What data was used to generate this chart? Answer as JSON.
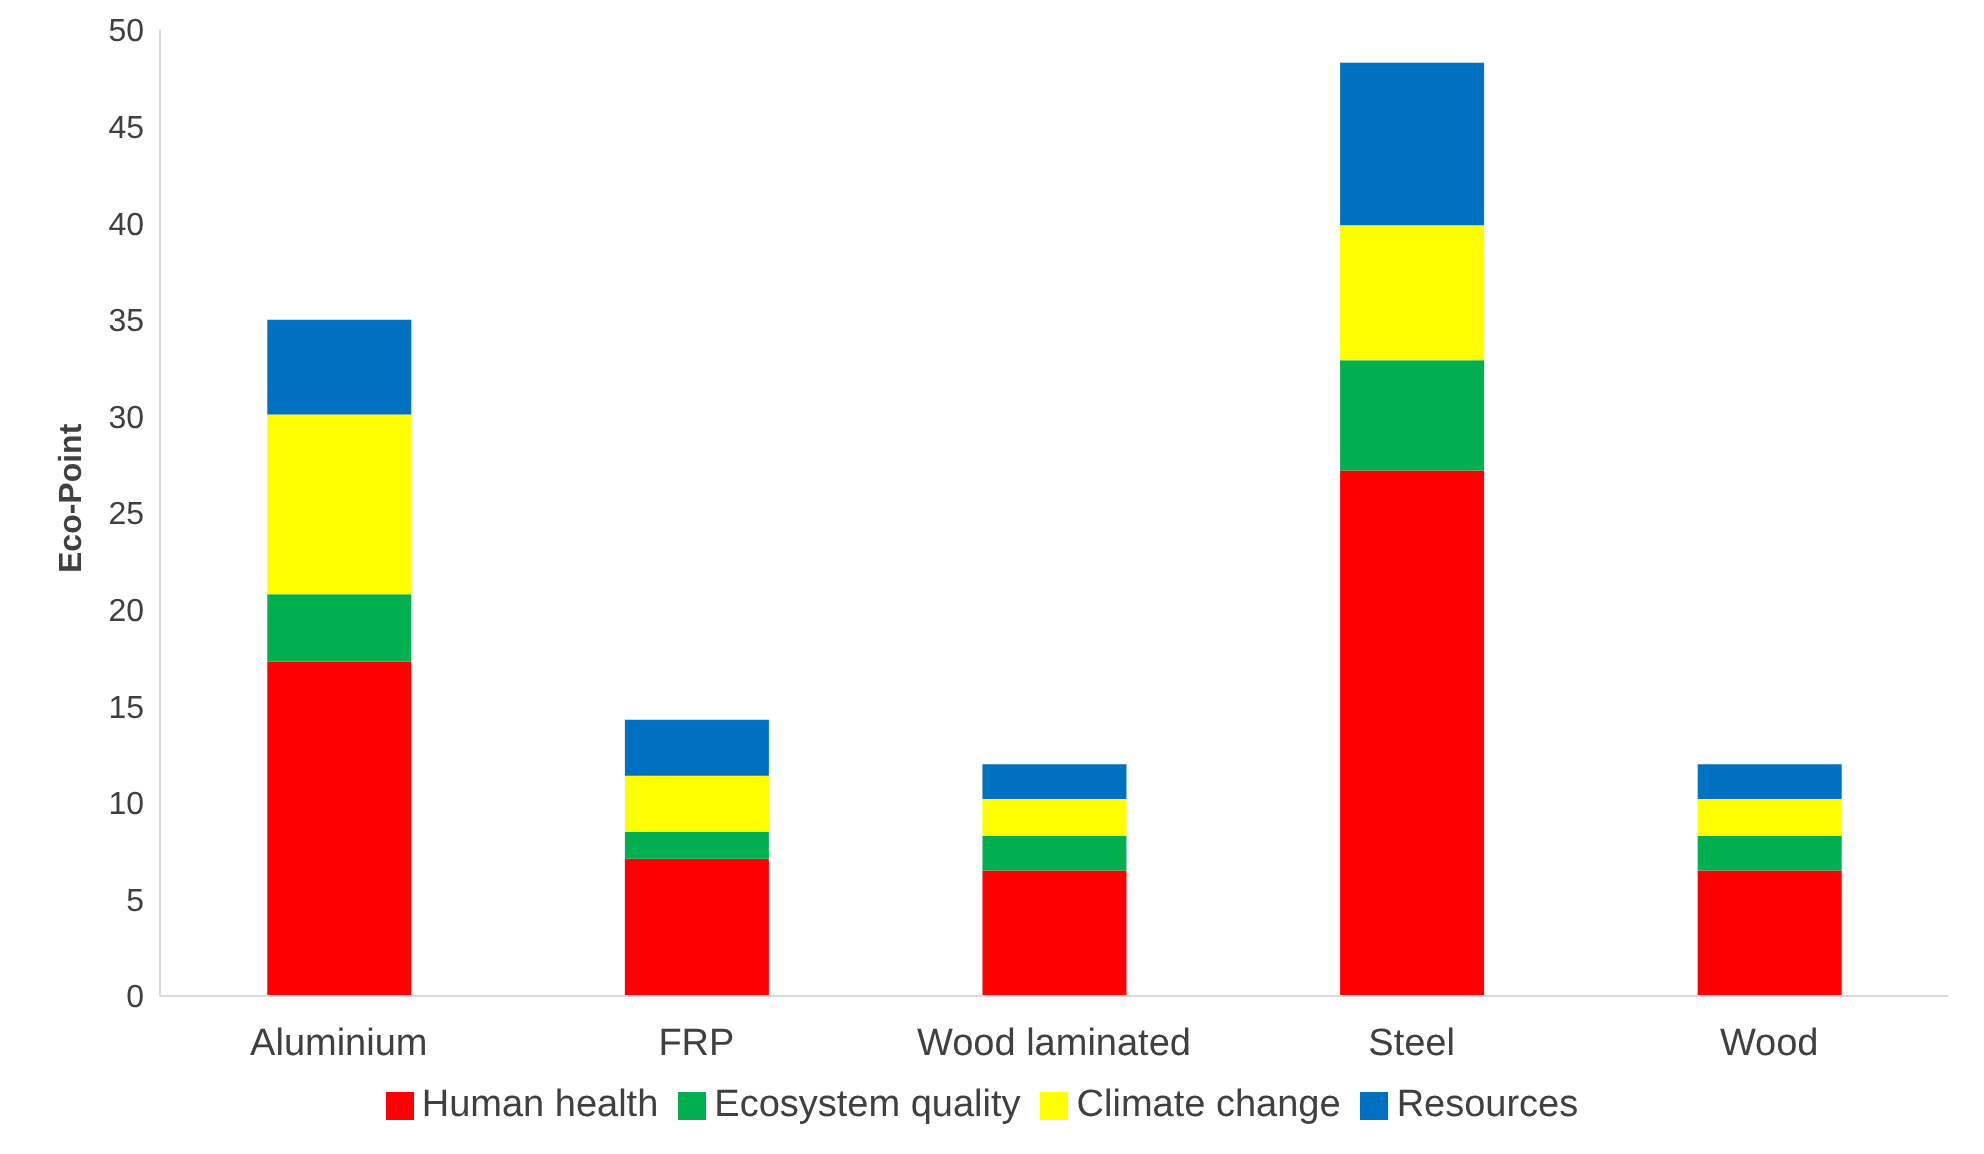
{
  "chart_data": {
    "type": "bar",
    "stacked": true,
    "ylabel": "Eco-Point",
    "categories": [
      "Aluminium",
      "FRP",
      "Wood laminated",
      "Steel",
      "Wood"
    ],
    "series": [
      {
        "name": "Human health",
        "color": "#ff0000",
        "values": [
          17.3,
          7.1,
          6.5,
          27.2,
          6.5
        ]
      },
      {
        "name": "Ecosystem quality",
        "color": "#00b050",
        "values": [
          3.5,
          1.4,
          1.8,
          5.7,
          1.8
        ]
      },
      {
        "name": "Climate change",
        "color": "#ffff00",
        "values": [
          9.3,
          2.9,
          1.9,
          7.0,
          1.9
        ]
      },
      {
        "name": "Resources",
        "color": "#0070c0",
        "values": [
          4.9,
          2.9,
          1.8,
          8.4,
          1.8
        ]
      }
    ],
    "ylim": [
      0,
      50
    ],
    "yticks": [
      0,
      5,
      10,
      15,
      20,
      25,
      30,
      35,
      40,
      45,
      50
    ],
    "grid": false,
    "legend": "bottom"
  }
}
